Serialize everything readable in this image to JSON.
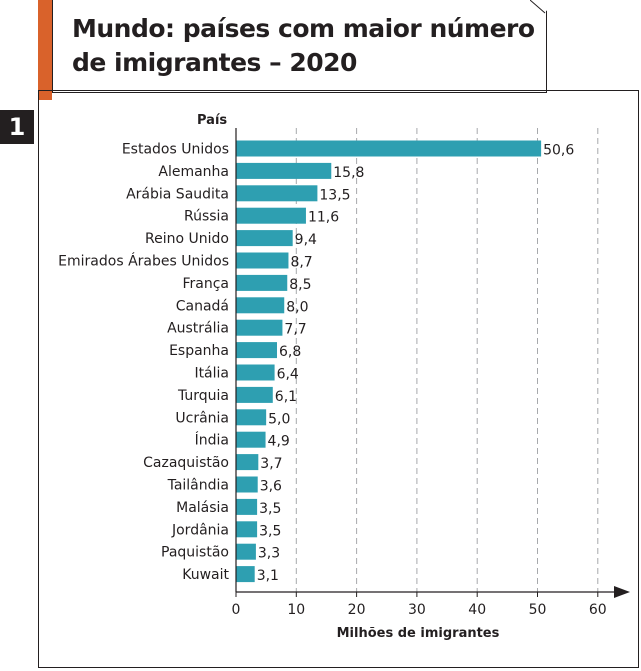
{
  "header": {
    "number": "1",
    "title": "Mundo: países com maior número de imigrantes – 2020"
  },
  "chart_data": {
    "type": "bar",
    "orientation": "horizontal",
    "title": "Mundo: países com maior número de imigrantes – 2020",
    "ylabel": "País",
    "xlabel": "Milhões de imigrantes",
    "xlim": [
      0,
      60
    ],
    "xticks": [
      "0",
      "10",
      "20",
      "30",
      "40",
      "50",
      "60"
    ],
    "grid": "vertical dashed",
    "bar_color": "#2e9fb1",
    "categories": [
      "Estados Unidos",
      "Alemanha",
      "Arábia Saudita",
      "Rússia",
      "Reino Unido",
      "Emirados Árabes Unidos",
      "França",
      "Canadá",
      "Austrália",
      "Espanha",
      "Itália",
      "Turquia",
      "Ucrânia",
      "Índia",
      "Cazaquistão",
      "Tailândia",
      "Malásia",
      "Jordânia",
      "Paquistão",
      "Kuwait"
    ],
    "values": [
      50.6,
      15.8,
      13.5,
      11.6,
      9.4,
      8.7,
      8.5,
      8.0,
      7.7,
      6.8,
      6.4,
      6.1,
      5.0,
      4.9,
      3.7,
      3.6,
      3.5,
      3.5,
      3.3,
      3.1
    ],
    "value_labels": [
      "50,6",
      "15,8",
      "13,5",
      "11,6",
      "9,4",
      "8,7",
      "8,5",
      "8,0",
      "7,7",
      "6,8",
      "6,4",
      "6,1",
      "5,0",
      "4,9",
      "3,7",
      "3,6",
      "3,5",
      "3,5",
      "3,3",
      "3,1"
    ]
  }
}
